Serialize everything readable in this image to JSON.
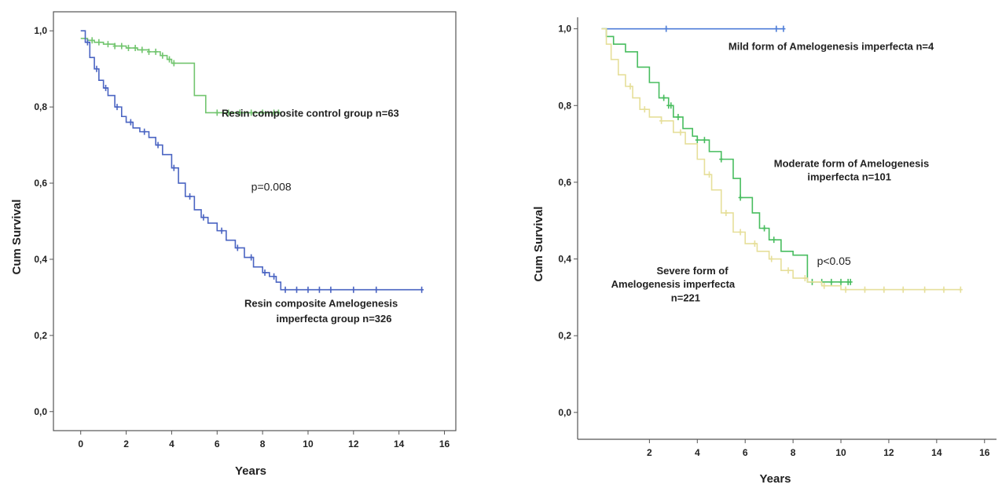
{
  "chart_data": [
    {
      "type": "line",
      "xlabel": "Years",
      "ylabel": "Cum Survival",
      "xlim": [
        -1.2,
        16.5
      ],
      "ylim": [
        -0.05,
        1.05
      ],
      "xticks": [
        "0",
        "2",
        "4",
        "6",
        "8",
        "10",
        "12",
        "14",
        "16"
      ],
      "yticks": [
        "0,0",
        "0,2",
        "0,4",
        "0,6",
        "0,8",
        "1,0"
      ],
      "annotations": [
        {
          "text": "Resin composite control group n=63",
          "x": 6.2,
          "y": 0.775
        },
        {
          "text": "p=0.008",
          "x": 7.5,
          "y": 0.58
        },
        {
          "text": "Resin composite Amelogenesis",
          "x": 7.2,
          "y": 0.275
        },
        {
          "text": "imperfecta group n=326",
          "x": 8.6,
          "y": 0.235
        }
      ],
      "series": [
        {
          "color": "#72c56f",
          "x": [
            0,
            0.1,
            0.3,
            0.6,
            1.0,
            1.5,
            2.0,
            2.5,
            3.0,
            3.5,
            3.8,
            4.0,
            4.2,
            4.5,
            5.0,
            5.0,
            5.5,
            5.5,
            8.8
          ],
          "y": [
            0.98,
            0.98,
            0.975,
            0.97,
            0.965,
            0.96,
            0.955,
            0.95,
            0.945,
            0.935,
            0.925,
            0.915,
            0.915,
            0.915,
            0.915,
            0.83,
            0.83,
            0.785,
            0.785
          ],
          "censored_x": [
            0.5,
            0.8,
            1.2,
            1.5,
            1.8,
            2.1,
            2.4,
            2.7,
            3.0,
            3.3,
            3.6,
            3.9,
            4.1,
            6.0,
            6.5,
            7.0,
            7.5,
            8.0,
            8.5,
            8.7
          ]
        },
        {
          "color": "#4a64c2",
          "x": [
            0,
            0.2,
            0.4,
            0.6,
            0.8,
            1.0,
            1.2,
            1.5,
            1.8,
            2.0,
            2.3,
            2.6,
            3.0,
            3.3,
            3.6,
            4.0,
            4.3,
            4.6,
            5.0,
            5.3,
            5.6,
            6.0,
            6.4,
            6.8,
            7.2,
            7.6,
            8.0,
            8.3,
            8.6,
            8.8,
            15.0
          ],
          "y": [
            1.0,
            0.97,
            0.93,
            0.9,
            0.87,
            0.85,
            0.83,
            0.8,
            0.775,
            0.76,
            0.745,
            0.735,
            0.72,
            0.7,
            0.675,
            0.64,
            0.6,
            0.565,
            0.53,
            0.51,
            0.495,
            0.475,
            0.45,
            0.43,
            0.405,
            0.38,
            0.365,
            0.355,
            0.34,
            0.32,
            0.32
          ],
          "censored_x": [
            0.3,
            0.7,
            1.1,
            1.6,
            2.2,
            2.8,
            3.4,
            4.1,
            4.8,
            5.4,
            6.2,
            6.9,
            7.5,
            8.1,
            8.5,
            9.0,
            9.5,
            10.0,
            10.5,
            11.0,
            12.0,
            13.0,
            15.0
          ]
        }
      ]
    },
    {
      "type": "line",
      "xlabel": "Years",
      "ylabel": "Cum Survival",
      "xlim": [
        -1.0,
        16.5
      ],
      "ylim": [
        -0.07,
        1.03
      ],
      "xticks": [
        "2",
        "4",
        "6",
        "8",
        "10",
        "12",
        "14",
        "16"
      ],
      "yticks": [
        "0,0",
        "0,2",
        "0,4",
        "0,6",
        "0,8",
        "1,0"
      ],
      "annotations": [
        {
          "text": "Mild form of Amelogenesis imperfecta n=4",
          "x": 5.3,
          "y": 0.945
        },
        {
          "text": "Moderate form of Amelogenesis",
          "x": 7.2,
          "y": 0.64
        },
        {
          "text": "imperfecta n=101",
          "x": 8.6,
          "y": 0.605
        },
        {
          "text": "p<0.05",
          "x": 9.0,
          "y": 0.385
        },
        {
          "text": "Severe form of",
          "x": 2.3,
          "y": 0.36
        },
        {
          "text": "Amelogenesis imperfecta",
          "x": 0.4,
          "y": 0.325
        },
        {
          "text": "n=221",
          "x": 2.9,
          "y": 0.29
        }
      ],
      "series": [
        {
          "color": "#4f7ed8",
          "x": [
            0,
            7.6
          ],
          "y": [
            1.0,
            1.0
          ],
          "censored_x": [
            2.7,
            7.3,
            7.6
          ]
        },
        {
          "color": "#48bd5f",
          "x": [
            0,
            0.2,
            0.5,
            1.0,
            1.5,
            2.0,
            2.4,
            2.8,
            3.0,
            3.4,
            3.8,
            4.0,
            4.5,
            5.0,
            5.5,
            5.8,
            6.3,
            6.6,
            7.0,
            7.5,
            8.0,
            8.5,
            8.6,
            10.4
          ],
          "y": [
            1.0,
            0.98,
            0.96,
            0.94,
            0.9,
            0.86,
            0.82,
            0.8,
            0.77,
            0.74,
            0.72,
            0.71,
            0.68,
            0.66,
            0.61,
            0.56,
            0.52,
            0.48,
            0.45,
            0.42,
            0.41,
            0.41,
            0.34,
            0.34
          ],
          "censored_x": [
            2.6,
            2.8,
            2.9,
            3.2,
            4.0,
            4.3,
            5.0,
            5.8,
            6.8,
            7.2,
            8.8,
            9.2,
            9.6,
            10.0,
            10.3,
            10.4
          ]
        },
        {
          "color": "#e6df9a",
          "x": [
            0,
            0.2,
            0.4,
            0.7,
            1.0,
            1.3,
            1.6,
            2.0,
            2.5,
            3.0,
            3.5,
            4.0,
            4.3,
            4.6,
            5.0,
            5.5,
            6.0,
            6.5,
            7.0,
            7.5,
            8.0,
            8.6,
            9.2,
            10.0,
            15.0
          ],
          "y": [
            1.0,
            0.96,
            0.92,
            0.88,
            0.85,
            0.82,
            0.79,
            0.77,
            0.76,
            0.73,
            0.7,
            0.66,
            0.62,
            0.58,
            0.52,
            0.47,
            0.44,
            0.42,
            0.4,
            0.37,
            0.35,
            0.34,
            0.33,
            0.32,
            0.32
          ],
          "censored_x": [
            1.2,
            1.8,
            2.5,
            3.3,
            4.5,
            5.2,
            5.8,
            6.4,
            7.1,
            7.8,
            8.5,
            9.3,
            10.2,
            11.0,
            11.8,
            12.6,
            13.5,
            14.3,
            15.0
          ]
        }
      ]
    }
  ]
}
